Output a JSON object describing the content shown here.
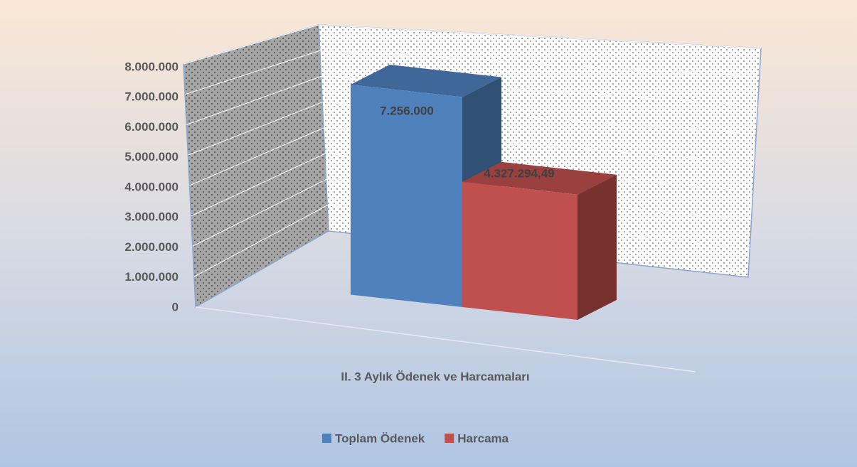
{
  "chart_data": {
    "type": "bar3d",
    "categories": [
      "II. 3 Aylık Ödenek ve Harcamaları"
    ],
    "series": [
      {
        "name": "Toplam Ödenek",
        "color": "#4f81bd",
        "values": [
          7256000
        ],
        "value_labels": [
          "7.256.000"
        ]
      },
      {
        "name": "Harcama",
        "color": "#c0504d",
        "values": [
          4327294.49
        ],
        "value_labels": [
          "4.327.294,49"
        ]
      }
    ],
    "ylim": [
      0,
      8000000
    ],
    "yticks": [
      0,
      {
        "value": 1000000,
        "label": "1.000.000"
      },
      {
        "value": 2000000,
        "label": "2.000.000"
      },
      {
        "value": 3000000,
        "label": "3.000.000"
      },
      {
        "value": 4000000,
        "label": "4.000.000"
      },
      {
        "value": 5000000,
        "label": "5.000.000"
      },
      {
        "value": 6000000,
        "label": "6.000.000"
      },
      {
        "value": 7000000,
        "label": "7.000.000"
      },
      {
        "value": 8000000,
        "label": "8.000.000"
      }
    ],
    "grid": true,
    "legend": "bottom"
  }
}
